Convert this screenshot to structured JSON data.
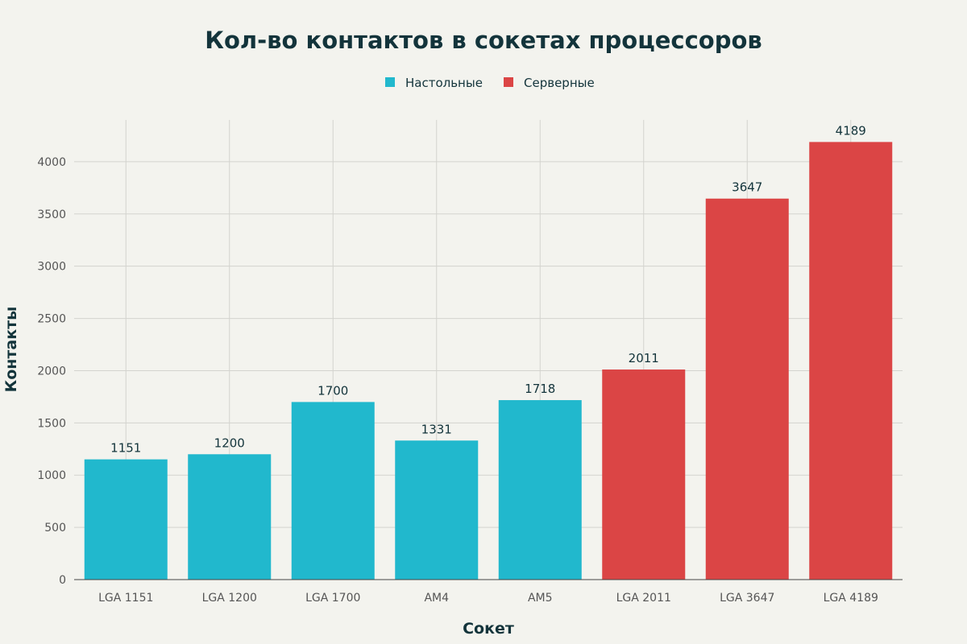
{
  "chart_data": {
    "type": "bar",
    "title": "Кол-во контактов в сокетах процессоров",
    "xlabel": "Сокет",
    "ylabel": "Контакты",
    "categories": [
      "LGA 1151",
      "LGA 1200",
      "LGA 1700",
      "AM4",
      "AM5",
      "LGA 2011",
      "LGA 3647",
      "LGA 4189"
    ],
    "values": [
      1151,
      1200,
      1700,
      1331,
      1718,
      2011,
      3647,
      4189
    ],
    "groups": [
      "Настольные",
      "Настольные",
      "Настольные",
      "Настольные",
      "Настольные",
      "Серверные",
      "Серверные",
      "Серверные"
    ],
    "legend": [
      {
        "name": "Настольные",
        "color": "#21B8CD"
      },
      {
        "name": "Серверные",
        "color": "#DB4545"
      }
    ],
    "legend_placement": "top-center",
    "ylim": [
      0,
      4400
    ],
    "yticks": [
      0,
      500,
      1000,
      1500,
      2000,
      2500,
      3000,
      3500,
      4000
    ],
    "grid": true
  }
}
